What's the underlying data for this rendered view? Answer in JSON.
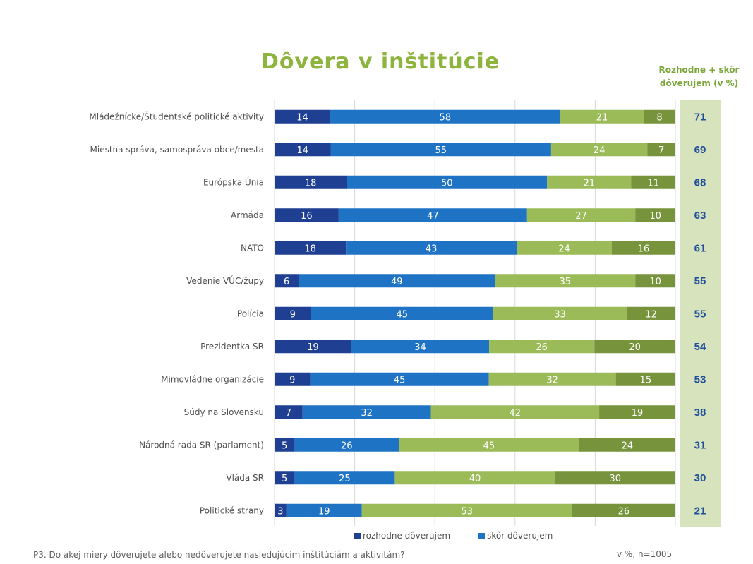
{
  "chart_data": {
    "type": "bar",
    "orientation": "horizontal",
    "stacked": true,
    "title": "Dôvera v inštitúcie",
    "categories": [
      "Mládežnícke/Študentské politické aktivity",
      "Miestna správa, samospráva obce/mesta",
      "Európska Únia",
      "Armáda",
      "NATO",
      "Vedenie VÚC/župy",
      "Polícia",
      "Prezidentka SR",
      "Mimovládne organizácie",
      "Súdy na Slovensku",
      "Národná rada SR (parlament)",
      "Vláda SR",
      "Politické strany"
    ],
    "series": [
      {
        "name": "rozhodne dôverujem",
        "color": "#1f3f93",
        "values": [
          14,
          14,
          18,
          16,
          18,
          6,
          9,
          19,
          9,
          7,
          5,
          5,
          3
        ]
      },
      {
        "name": "skôr dôverujem",
        "color": "#1f73c4",
        "values": [
          58,
          55,
          50,
          47,
          43,
          49,
          45,
          34,
          45,
          32,
          26,
          25,
          19
        ]
      },
      {
        "name": "",
        "color": "#9bbb59",
        "values": [
          21,
          24,
          21,
          27,
          24,
          35,
          33,
          26,
          32,
          42,
          45,
          40,
          53
        ]
      },
      {
        "name": "",
        "color": "#77933c",
        "values": [
          8,
          7,
          11,
          10,
          16,
          10,
          12,
          20,
          15,
          19,
          24,
          30,
          26
        ]
      }
    ],
    "totals": {
      "header": [
        "Rozhodne + skôr",
        "dôverujem (v %)"
      ],
      "values": [
        71,
        69,
        68,
        63,
        61,
        55,
        55,
        54,
        53,
        38,
        31,
        30,
        21
      ]
    },
    "legend_position": "bottom",
    "grid": true
  },
  "footnote": "P3. Do akej miery dôverujete alebo nedôverujete nasledujúcim inštitúciám a aktivitám?",
  "sample_note": "v %, n=1005",
  "colors": {
    "title": "#8db43c",
    "side_panel": "#d6e3bd",
    "totals_text": "#1f4e9c"
  }
}
